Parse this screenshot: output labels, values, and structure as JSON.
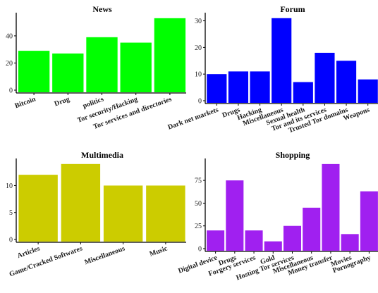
{
  "chart_data": [
    {
      "type": "bar",
      "title": "News",
      "categories": [
        "Bitcoin",
        "Drug",
        "politics",
        "Tor security/Hacking",
        "Tor services and directories"
      ],
      "values": [
        29,
        27,
        39,
        35,
        53
      ],
      "ylim": [
        0,
        55
      ],
      "yticks": [
        0,
        20,
        40
      ],
      "color": "#00ff00",
      "grid": false
    },
    {
      "type": "bar",
      "title": "Forum",
      "categories": [
        "Dark net markets",
        "Drugs",
        "Hacking",
        "Miscellaneous",
        "Sexual health",
        "Tor and its services",
        "Trusted Tor domains",
        "Weapons"
      ],
      "values": [
        10,
        11,
        11,
        31,
        7,
        18,
        15,
        8
      ],
      "ylim": [
        0,
        32
      ],
      "yticks": [
        0,
        10,
        20,
        30
      ],
      "color": "#0000ff",
      "grid": false
    },
    {
      "type": "bar",
      "title": "Multimedia",
      "categories": [
        "Articles",
        "Game/Cracked Softwares",
        "Miscellaneous",
        "Music"
      ],
      "values": [
        12,
        14,
        10,
        10
      ],
      "ylim": [
        0,
        14.5
      ],
      "yticks": [
        0,
        5,
        10
      ],
      "color": "#cccc00",
      "grid": false
    },
    {
      "type": "bar",
      "title": "Shopping",
      "categories": [
        "Digital device",
        "Drugs",
        "Forgery services",
        "Gold",
        "Hosting Tor services",
        "Miscellaneous",
        "Money transfer",
        "Movies",
        "Pornography"
      ],
      "values": [
        20,
        75,
        20,
        8,
        25,
        45,
        93,
        16,
        63
      ],
      "ylim": [
        0,
        96
      ],
      "yticks": [
        0,
        25,
        50,
        75
      ],
      "color": "#a020f0",
      "grid": false
    }
  ]
}
